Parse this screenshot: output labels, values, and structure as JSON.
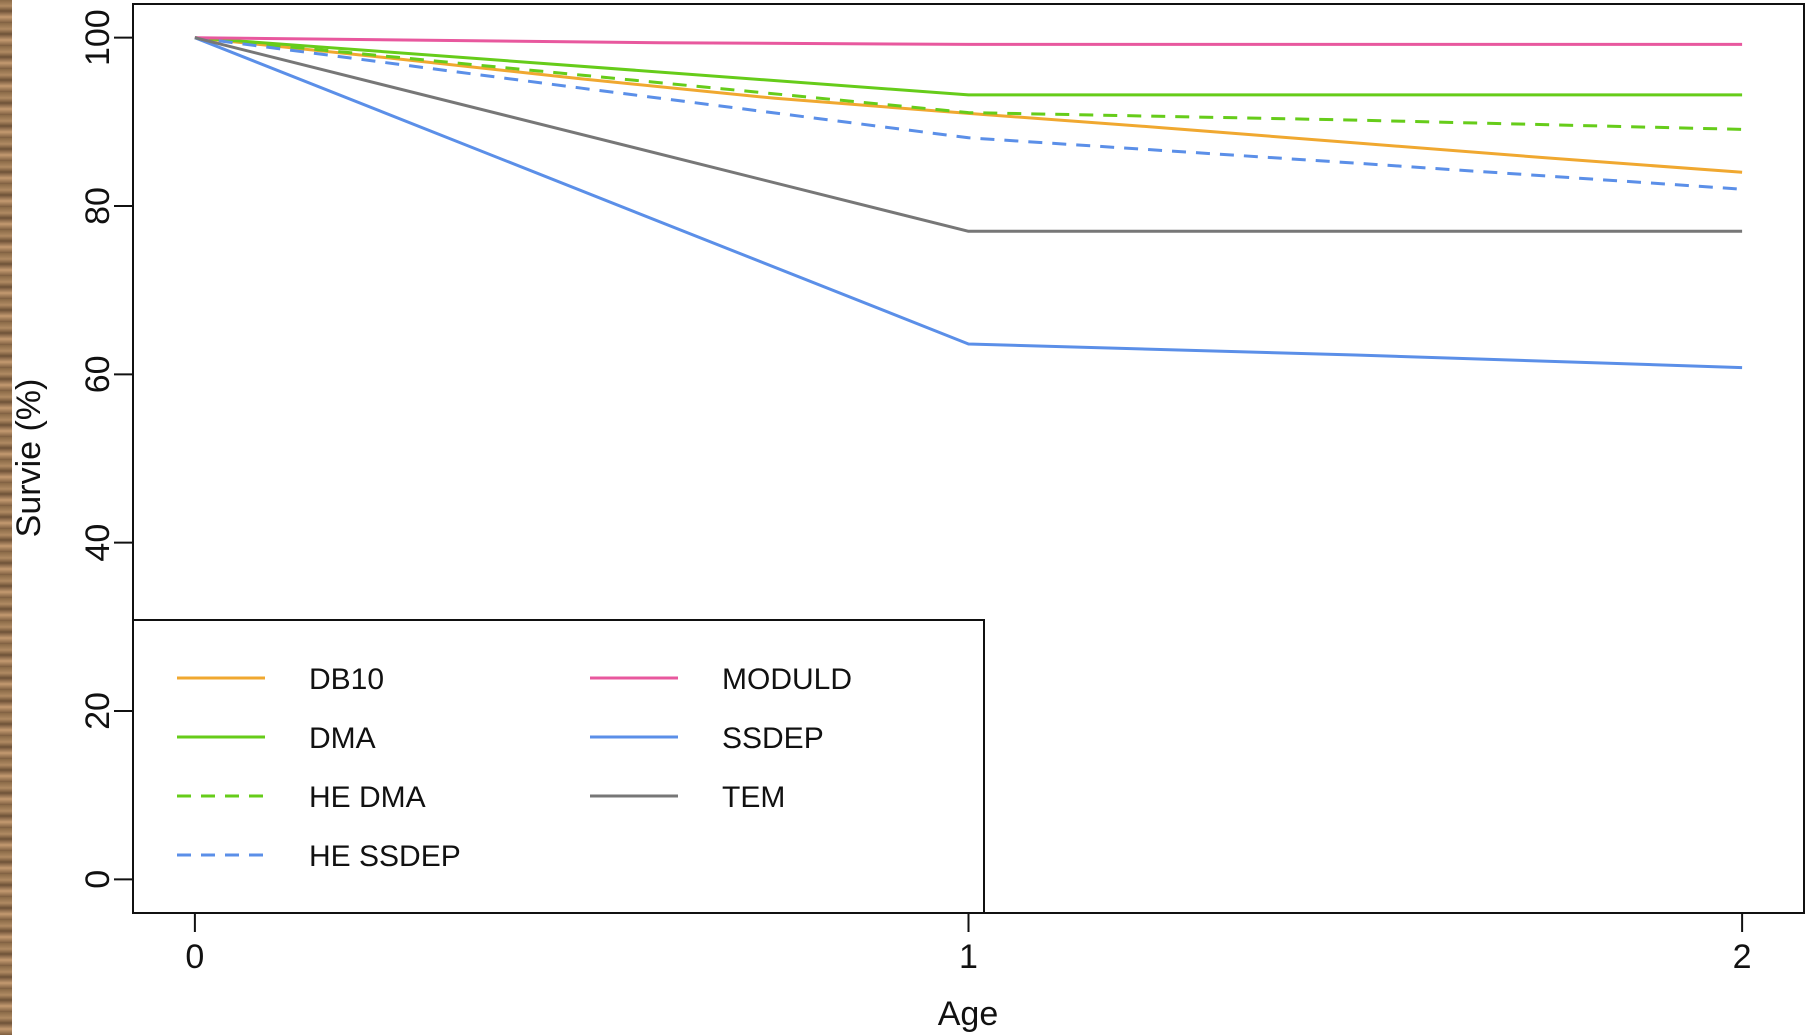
{
  "chart_data": {
    "type": "line",
    "title": "",
    "xlabel": "Age",
    "ylabel": "Survie (%)",
    "x_ticks": [
      "0",
      "1",
      "2"
    ],
    "y_ticks": [
      "0",
      "20",
      "40",
      "60",
      "80",
      "100"
    ],
    "xlim": [
      -0.08,
      2.08
    ],
    "ylim": [
      -4,
      104
    ],
    "grid": false,
    "legend_position": "bottom-left",
    "series": [
      {
        "name": "DB10",
        "color": "#f0a830",
        "dash": "solid",
        "points": [
          [
            0,
            100
          ],
          [
            0.25,
            97.6
          ],
          [
            0.5,
            95.1
          ],
          [
            0.75,
            92.8
          ],
          [
            1,
            91.0
          ],
          [
            1.25,
            89.3
          ],
          [
            1.5,
            87.5
          ],
          [
            1.75,
            85.7
          ],
          [
            2,
            84.0
          ]
        ]
      },
      {
        "name": "DMA",
        "color": "#66cc1a",
        "dash": "solid",
        "points": [
          [
            0,
            100
          ],
          [
            1,
            93.2
          ],
          [
            2,
            93.2
          ]
        ]
      },
      {
        "name": "HE DMA",
        "color": "#66cc1a",
        "dash": "dashed",
        "points": [
          [
            0,
            100
          ],
          [
            1,
            91.1
          ],
          [
            1.5,
            90.2
          ],
          [
            2,
            89.1
          ]
        ]
      },
      {
        "name": "HE SSDEP",
        "color": "#5b8fe8",
        "dash": "dashed",
        "points": [
          [
            0,
            100
          ],
          [
            0.5,
            94.0
          ],
          [
            1,
            88.1
          ],
          [
            1.5,
            85.1
          ],
          [
            2,
            82.0
          ]
        ]
      },
      {
        "name": "MODULD",
        "color": "#e8589e",
        "dash": "solid",
        "points": [
          [
            0,
            100
          ],
          [
            0.6,
            99.4
          ],
          [
            1,
            99.2
          ],
          [
            2,
            99.2
          ]
        ]
      },
      {
        "name": "SSDEP",
        "color": "#5b8fe8",
        "dash": "solid",
        "points": [
          [
            0,
            100
          ],
          [
            1,
            63.6
          ],
          [
            1.5,
            62.3
          ],
          [
            2,
            60.8
          ]
        ]
      },
      {
        "name": "TEM",
        "color": "#777777",
        "dash": "solid",
        "points": [
          [
            0,
            100
          ],
          [
            1,
            77.0
          ],
          [
            2,
            77.0
          ]
        ]
      }
    ]
  }
}
